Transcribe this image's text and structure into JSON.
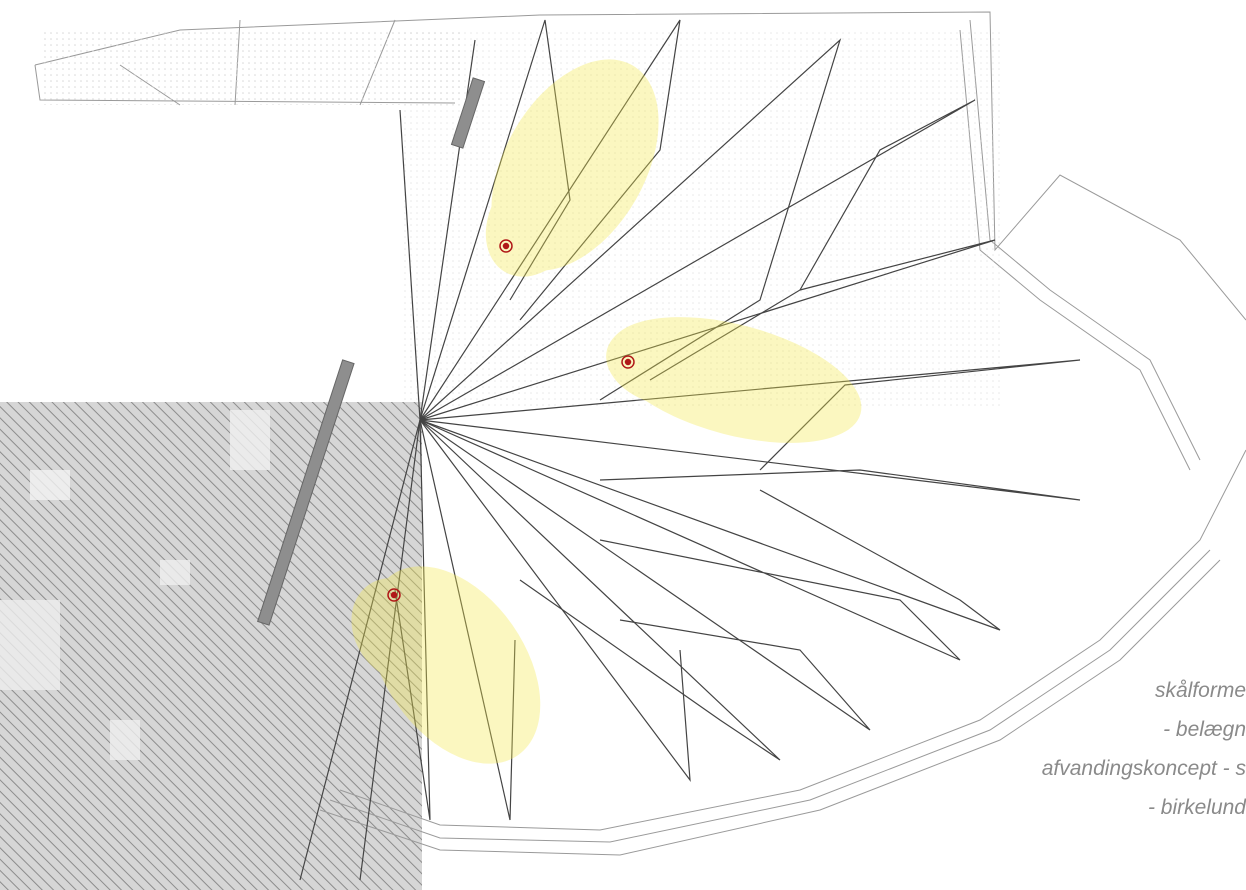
{
  "annotations": [
    "skålforme",
    "- belægn",
    "afvandingskoncept - s",
    "- birkelund"
  ]
}
